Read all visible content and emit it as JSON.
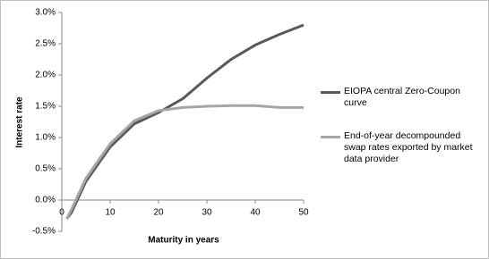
{
  "chart_data": {
    "type": "line",
    "x": [
      1,
      2,
      5,
      10,
      15,
      20,
      25,
      30,
      35,
      40,
      45,
      50
    ],
    "series": [
      {
        "name": "EIOPA central Zero-Coupon curve",
        "color": "#595959",
        "values": [
          -0.3,
          -0.2,
          0.3,
          0.85,
          1.22,
          1.4,
          1.62,
          1.95,
          2.25,
          2.48,
          2.65,
          2.8
        ]
      },
      {
        "name": "End-of-year decompounded swap rates exported by market data provider",
        "color": "#a6a6a6",
        "values": [
          -0.3,
          -0.15,
          0.35,
          0.9,
          1.27,
          1.43,
          1.48,
          1.5,
          1.51,
          1.51,
          1.48,
          1.48
        ]
      }
    ],
    "xlabel": "Maturity in years",
    "ylabel": "Interest rate",
    "xlim": [
      0,
      50
    ],
    "xticks": [
      0,
      10,
      20,
      30,
      40,
      50
    ],
    "ylim": [
      -0.5,
      3.0
    ],
    "yticks": [
      {
        "value": -0.5,
        "label": "-0.5%"
      },
      {
        "value": 0,
        "label": "0.0%"
      },
      {
        "value": 0.5,
        "label": "0.5%"
      },
      {
        "value": 1.0,
        "label": "1.0%"
      },
      {
        "value": 1.5,
        "label": "1.5%"
      },
      {
        "value": 2.0,
        "label": "2.0%"
      },
      {
        "value": 2.5,
        "label": "2.5%"
      },
      {
        "value": 3.0,
        "label": "3.0%"
      }
    ],
    "grid": false,
    "legend": "right"
  }
}
